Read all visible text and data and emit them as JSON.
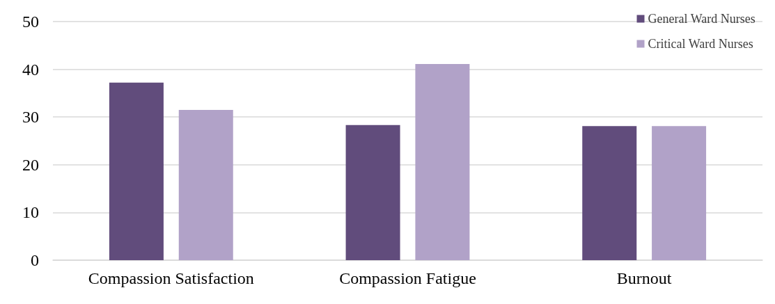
{
  "chart_data": {
    "type": "bar",
    "categories": [
      "Compassion Satisfaction",
      "Compassion Fatigue",
      "Burnout"
    ],
    "series": [
      {
        "name": "General Ward Nurses",
        "color": "#614c7c",
        "values": [
          37.2,
          28.3,
          28.1
        ]
      },
      {
        "name": "Critical Ward Nurses",
        "color": "#b1a2c8",
        "values": [
          31.5,
          41.1,
          28.1
        ]
      }
    ],
    "ylim": [
      0,
      50
    ],
    "yticks": [
      0,
      10,
      20,
      30,
      40,
      50
    ],
    "grid": "y",
    "legend": "top right"
  }
}
